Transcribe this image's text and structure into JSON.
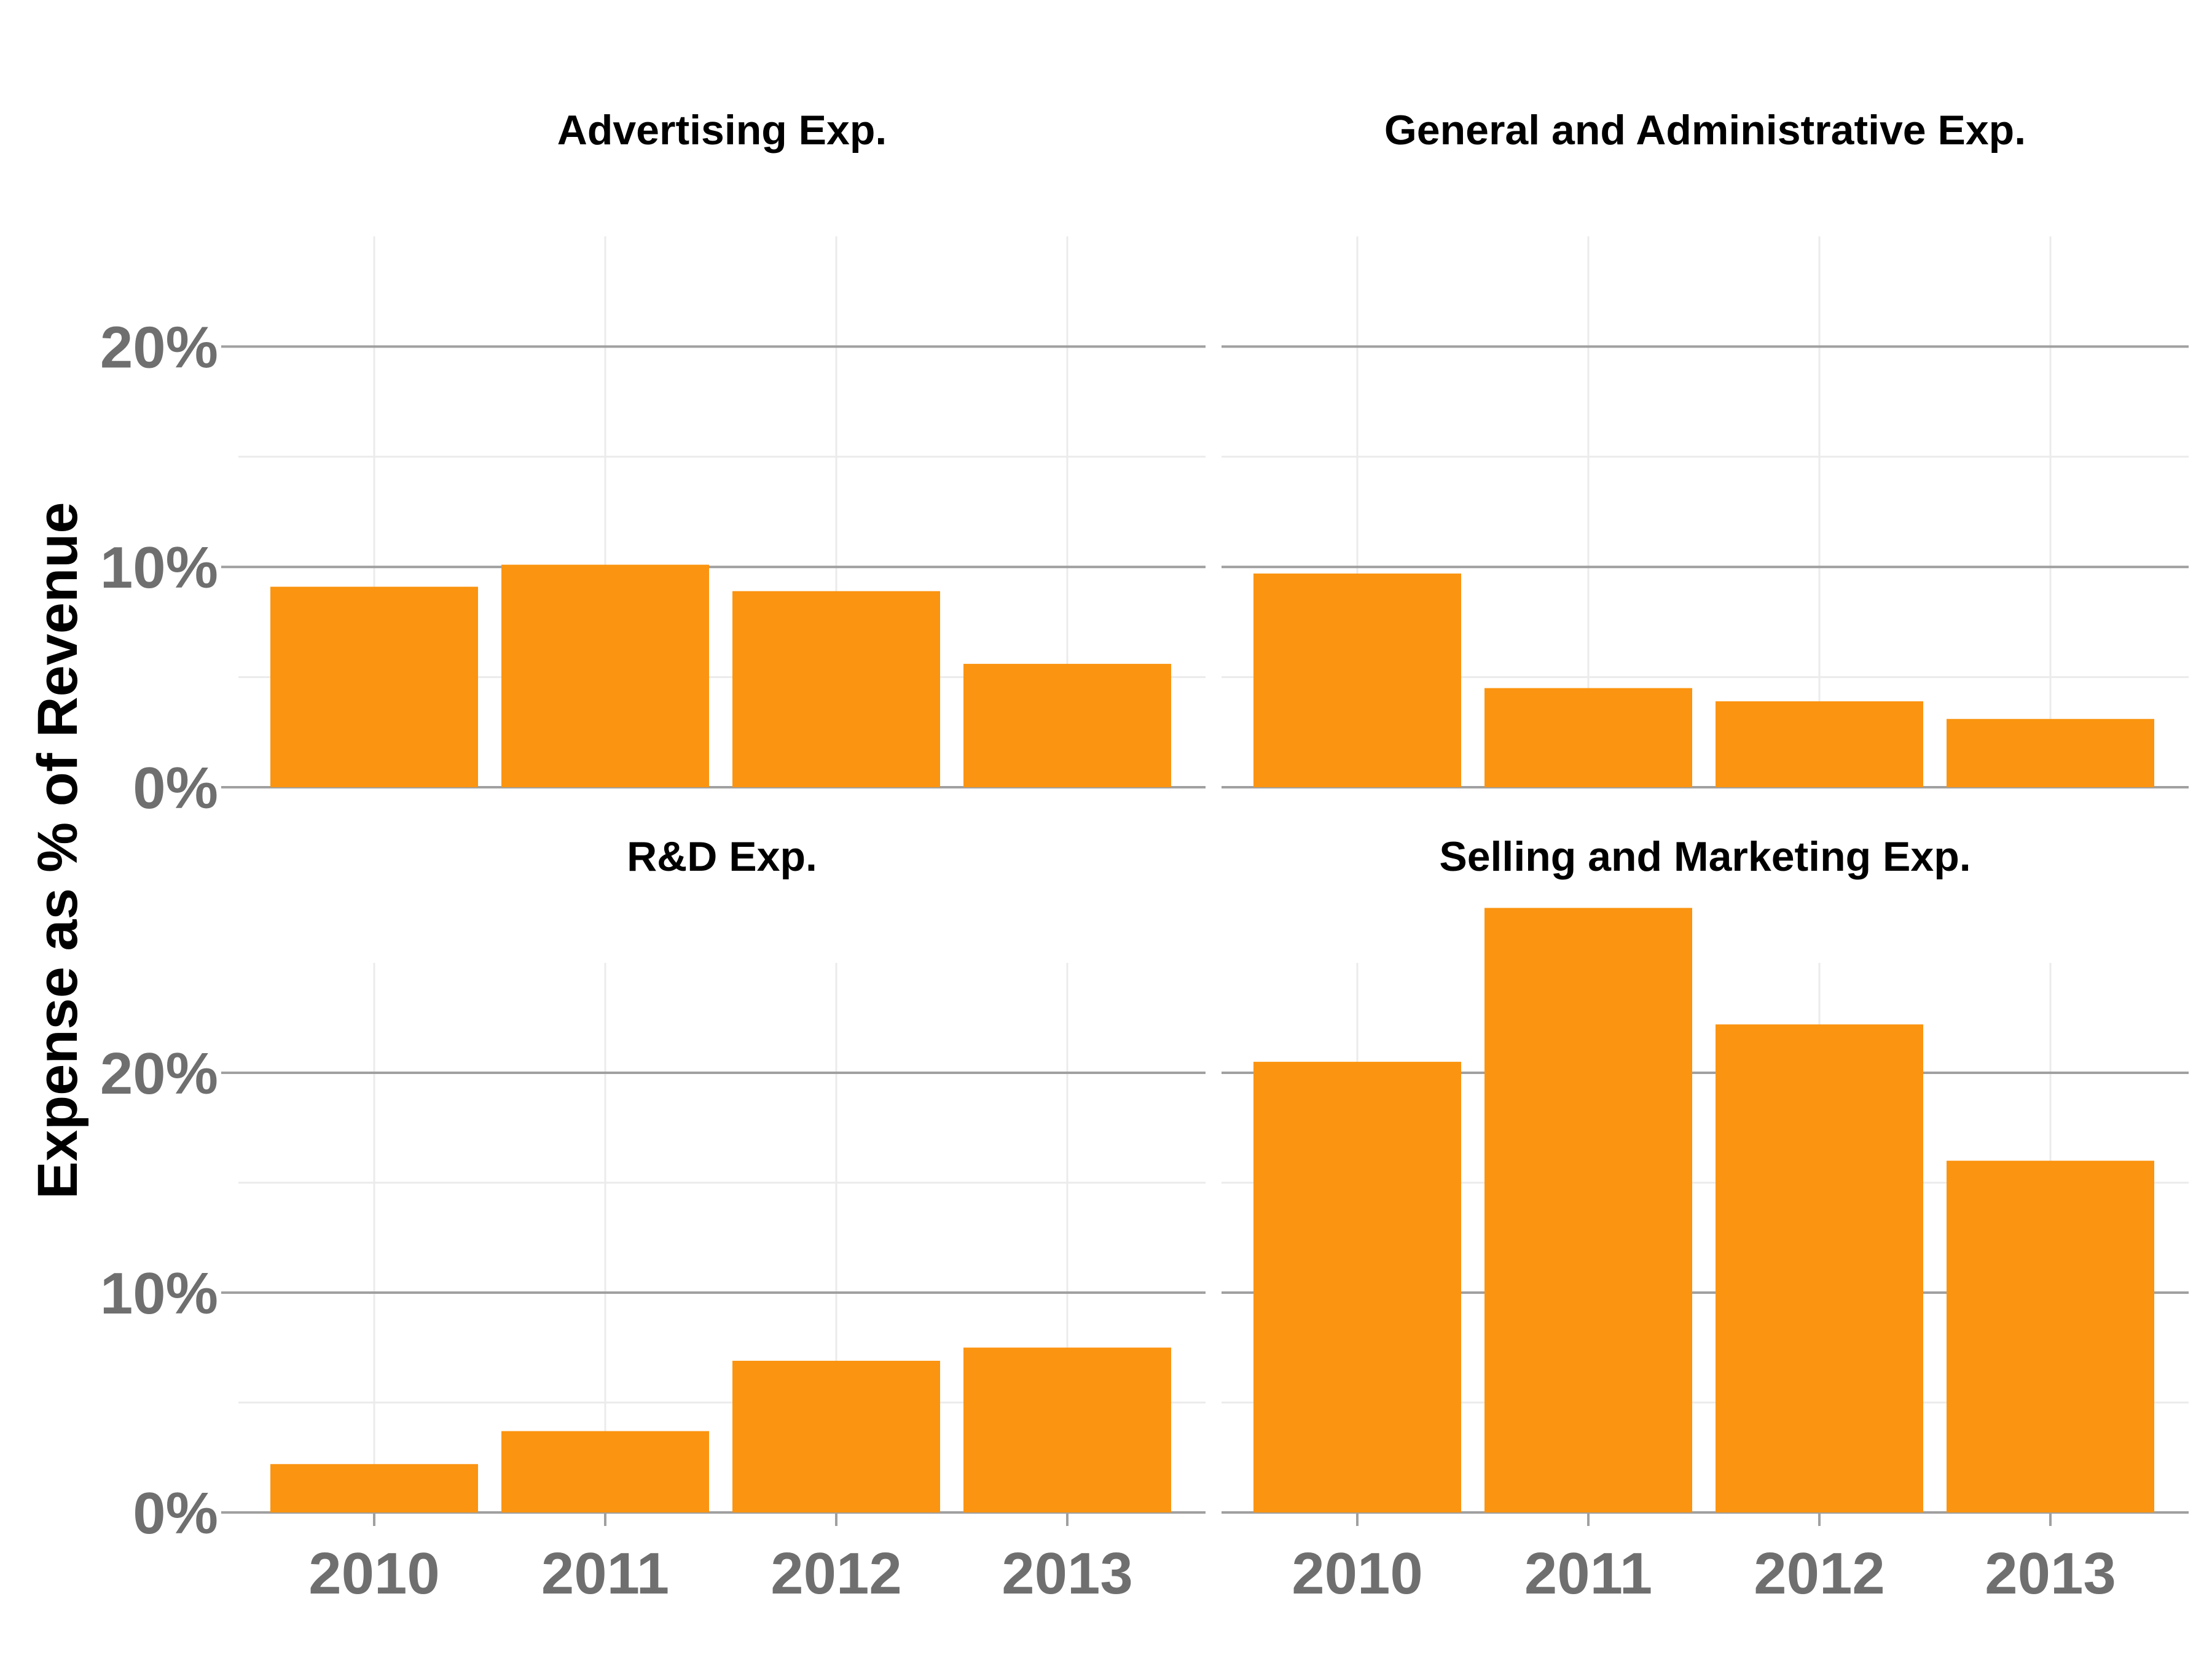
{
  "chart_data": {
    "type": "bar",
    "ylabel": "Expense as % of Revenue",
    "categories": [
      "2010",
      "2011",
      "2012",
      "2013"
    ],
    "bar_color": "#fb9410",
    "grid_major_color": "#a0a0a0",
    "grid_minor_color": "#ebebeb",
    "panels": [
      {
        "title": "Advertising Exp.",
        "values": [
          9.1,
          10.1,
          8.9,
          5.6
        ],
        "ylim": [
          0,
          25
        ],
        "yticks": [
          0,
          10,
          20
        ],
        "ytick_labels": [
          "0%",
          "10%",
          "20%"
        ]
      },
      {
        "title": "General and Administrative Exp.",
        "values": [
          9.7,
          4.5,
          3.9,
          3.1
        ],
        "ylim": [
          0,
          25
        ],
        "yticks": [
          0,
          10,
          20
        ],
        "ytick_labels": [
          "0%",
          "10%",
          "20%"
        ]
      },
      {
        "title": "R&D Exp.",
        "values": [
          2.2,
          3.7,
          6.9,
          7.5
        ],
        "ylim": [
          0,
          25
        ],
        "yticks": [
          0,
          10,
          20
        ],
        "ytick_labels": [
          "0%",
          "10%",
          "20%"
        ]
      },
      {
        "title": "Selling and Marketing Exp.",
        "values": [
          20.5,
          27.5,
          22.2,
          16.0
        ],
        "ylim": [
          0,
          25
        ],
        "yticks": [
          0,
          10,
          20
        ],
        "ytick_labels": [
          "0%",
          "10%",
          "20%"
        ]
      }
    ]
  }
}
